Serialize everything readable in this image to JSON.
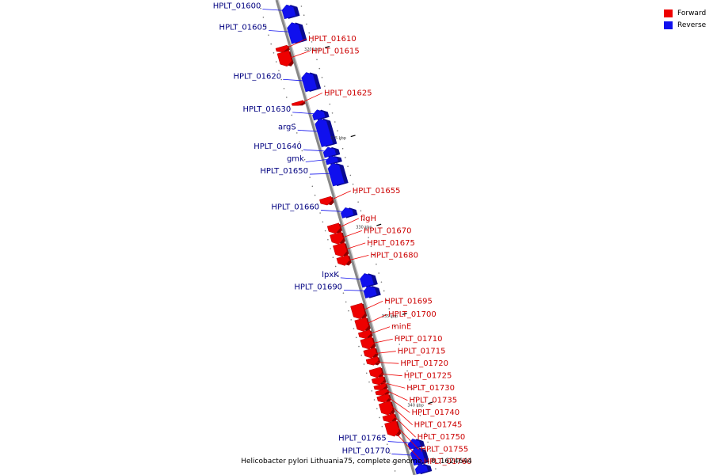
{
  "colors": {
    "forward": "#ee0000",
    "reverse": "#1010ee",
    "forward_label": "#cc0000",
    "reverse_label": "#000080",
    "backbone": "#888888"
  },
  "legend": {
    "forward_label": "Forward",
    "reverse_label": "Reverse"
  },
  "caption": "Helicobacter pylori Lithuania75, complete genome. - 0..1624644",
  "chart_data": {
    "type": "linear-genome-map",
    "range_kbp": [
      316.8,
      343.5
    ],
    "ticks": [
      {
        "kbp": 320,
        "label": "320 kbp"
      },
      {
        "kbp": 325,
        "label": "325 kbp"
      },
      {
        "kbp": 330,
        "label": "330 kbp"
      },
      {
        "kbp": 335,
        "label": "335 kbp"
      },
      {
        "kbp": 340,
        "label": "340 kbp"
      }
    ],
    "genes": [
      {
        "name": "HPLT_01600",
        "strand": "reverse",
        "start": 317.2,
        "end": 317.9
      },
      {
        "name": "HPLT_01605",
        "strand": "reverse",
        "start": 318.2,
        "end": 319.3
      },
      {
        "name": "HPLT_01610",
        "strand": "forward",
        "start": 319.3,
        "end": 319.6
      },
      {
        "name": "HPLT_01615",
        "strand": "forward",
        "start": 319.6,
        "end": 320.4
      },
      {
        "name": "HPLT_01620",
        "strand": "reverse",
        "start": 321.0,
        "end": 322.0
      },
      {
        "name": "HPLT_01625",
        "strand": "forward",
        "start": 322.4,
        "end": 322.6
      },
      {
        "name": "HPLT_01630",
        "strand": "reverse",
        "start": 323.1,
        "end": 323.6
      },
      {
        "name": "argS",
        "strand": "reverse",
        "start": 323.6,
        "end": 325.1
      },
      {
        "name": "HPLT_01640",
        "strand": "reverse",
        "start": 325.2,
        "end": 325.7
      },
      {
        "name": "gmk",
        "strand": "reverse",
        "start": 325.7,
        "end": 326.1
      },
      {
        "name": "HPLT_01650",
        "strand": "reverse",
        "start": 326.1,
        "end": 327.3
      },
      {
        "name": "HPLT_01655",
        "strand": "forward",
        "start": 327.8,
        "end": 328.2
      },
      {
        "name": "HPLT_01660",
        "strand": "reverse",
        "start": 328.6,
        "end": 329.1
      },
      {
        "name": "flgH",
        "strand": "forward",
        "start": 329.3,
        "end": 329.8
      },
      {
        "name": "HPLT_01670",
        "strand": "forward",
        "start": 329.8,
        "end": 330.4
      },
      {
        "name": "HPLT_01675",
        "strand": "forward",
        "start": 330.4,
        "end": 331.1
      },
      {
        "name": "HPLT_01680",
        "strand": "forward",
        "start": 331.1,
        "end": 331.6
      },
      {
        "name": "lpxK",
        "strand": "reverse",
        "start": 332.3,
        "end": 333.0
      },
      {
        "name": "HPLT_01690",
        "strand": "reverse",
        "start": 333.0,
        "end": 333.6
      },
      {
        "name": "HPLT_01695",
        "strand": "forward",
        "start": 333.8,
        "end": 334.6
      },
      {
        "name": "HPLT_01700",
        "strand": "forward",
        "start": 334.6,
        "end": 335.3
      },
      {
        "name": "minE",
        "strand": "forward",
        "start": 335.3,
        "end": 335.7
      },
      {
        "name": "HPLT_01710",
        "strand": "forward",
        "start": 335.7,
        "end": 336.3
      },
      {
        "name": "HPLT_01715",
        "strand": "forward",
        "start": 336.3,
        "end": 336.8
      },
      {
        "name": "HPLT_01720",
        "strand": "forward",
        "start": 336.8,
        "end": 337.2
      },
      {
        "name": "HPLT_01725",
        "strand": "forward",
        "start": 337.4,
        "end": 337.9
      },
      {
        "name": "HPLT_01730",
        "strand": "forward",
        "start": 337.9,
        "end": 338.3
      },
      {
        "name": "HPLT_01735",
        "strand": "forward",
        "start": 338.3,
        "end": 338.6
      },
      {
        "name": "HPLT_01740",
        "strand": "forward",
        "start": 338.6,
        "end": 338.9
      },
      {
        "name": "HPLT_01745",
        "strand": "forward",
        "start": 338.9,
        "end": 339.3
      },
      {
        "name": "HPLT_01750",
        "strand": "forward",
        "start": 339.3,
        "end": 340.0
      },
      {
        "name": "HPLT_01755",
        "strand": "forward",
        "start": 340.0,
        "end": 340.4
      },
      {
        "name": "HPLT_01760",
        "strand": "forward",
        "start": 340.4,
        "end": 341.2
      },
      {
        "name": "HPLT_01765",
        "strand": "reverse",
        "start": 341.6,
        "end": 342.1
      },
      {
        "name": "HPLT_01770",
        "strand": "reverse",
        "start": 342.1,
        "end": 343.0
      },
      {
        "name": "",
        "strand": "reverse",
        "start": 343.0,
        "end": 343.5
      }
    ]
  }
}
